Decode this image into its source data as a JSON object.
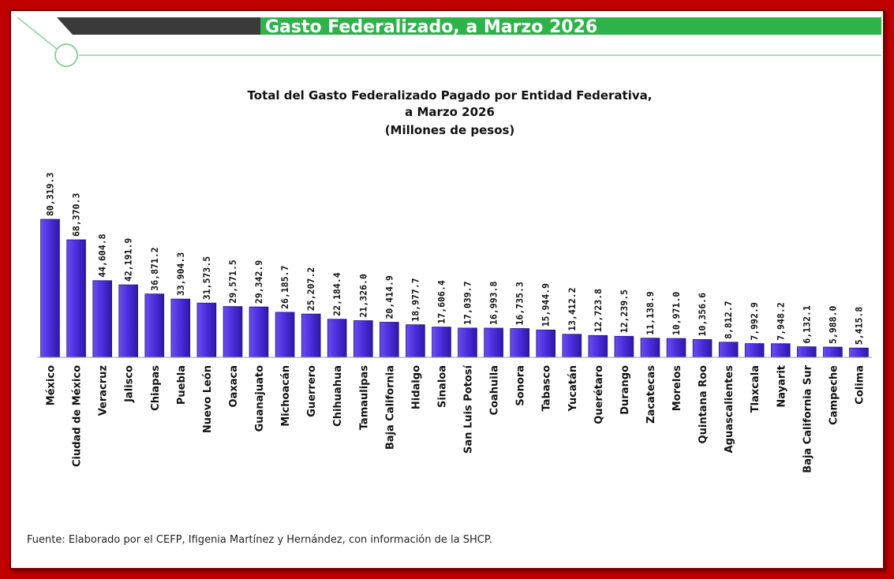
{
  "header": {
    "title": "Gasto Federalizado, a Marzo 2026",
    "accent_color": "#2db34a",
    "dark_color": "#3a3a3a"
  },
  "source": "Fuente: Elaborado por el CEFP, Ifigenia Martínez y Hernández, con información de la SHCP.",
  "chart_data": {
    "type": "bar",
    "title": "Total del Gasto Federalizado Pagado por Entidad Federativa,",
    "subtitle": "a Marzo 2026",
    "units": "(Millones de pesos)",
    "xlabel": "",
    "ylabel": "",
    "ylim": [
      0,
      80319.3
    ],
    "grid": false,
    "bar_color": "#4b2ddb",
    "categories": [
      "México",
      "Ciudad de México",
      "Veracruz",
      "Jalisco",
      "Chiapas",
      "Puebla",
      "Nuevo León",
      "Oaxaca",
      "Guanajuato",
      "Michoacán",
      "Guerrero",
      "Chihuahua",
      "Tamaulipas",
      "Baja California",
      "Hidalgo",
      "Sinaloa",
      "San Luis Potosí",
      "Coahuila",
      "Sonora",
      "Tabasco",
      "Yucatán",
      "Querétaro",
      "Durango",
      "Zacatecas",
      "Morelos",
      "Quintana Roo",
      "Aguascalientes",
      "Tlaxcala",
      "Nayarit",
      "Baja California Sur",
      "Campeche",
      "Colima"
    ],
    "values": [
      80319.3,
      68370.3,
      44604.8,
      42191.9,
      36871.2,
      33904.3,
      31573.5,
      29571.5,
      29342.9,
      26185.7,
      25207.2,
      22184.4,
      21326.0,
      20414.9,
      18977.7,
      17606.4,
      17039.7,
      16993.8,
      16735.3,
      15944.9,
      13412.2,
      12723.8,
      12239.5,
      11138.9,
      10971.0,
      10356.6,
      8812.7,
      7992.9,
      7948.2,
      6132.1,
      5988.0,
      5415.8
    ],
    "value_labels": [
      "80,319.3",
      "68,370.3",
      "44,604.8",
      "42,191.9",
      "36,871.2",
      "33,904.3",
      "31,573.5",
      "29,571.5",
      "29,342.9",
      "26,185.7",
      "25,207.2",
      "22,184.4",
      "21,326.0",
      "20,414.9",
      "18,977.7",
      "17,606.4",
      "17,039.7",
      "16,993.8",
      "16,735.3",
      "15,944.9",
      "13,412.2",
      "12,723.8",
      "12,239.5",
      "11,138.9",
      "10,971.0",
      "10,356.6",
      "8,812.7",
      "7,992.9",
      "7,948.2",
      "6,132.1",
      "5,988.0",
      "5,415.8"
    ]
  }
}
